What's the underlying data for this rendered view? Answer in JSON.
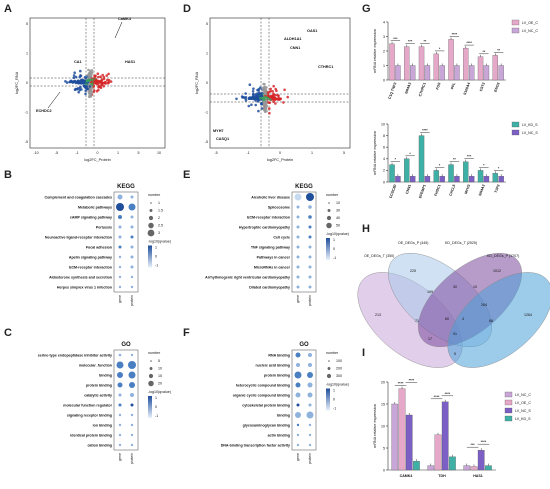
{
  "chart_data": [
    {
      "panel": "A",
      "type": "scatter",
      "xlabel": "log2FC_Protein",
      "ylabel": "log2FC_RNA",
      "xticks": [
        "-10",
        "-5",
        "-1",
        "0",
        "1",
        "5",
        "10"
      ],
      "yticks": [
        "5",
        "1",
        "0",
        "-1",
        "-5"
      ],
      "annotations": [
        "CaMK4",
        "CA1",
        "HAS1",
        "ECHDC2"
      ]
    },
    {
      "panel": "D",
      "type": "scatter",
      "xlabel": "log2FC_Protein",
      "ylabel": "log2FC_RNA",
      "xticks": [
        "-5",
        "-1",
        "0",
        "1",
        "5"
      ],
      "yticks": [
        "5",
        "1",
        "0",
        "-1",
        "-5"
      ],
      "annotations": [
        "OAS1",
        "ALDH1A1",
        "CNN1",
        "CTHRC1",
        "MYH7",
        "CASQ1"
      ]
    },
    {
      "panel": "B",
      "type": "heatmap",
      "title": "KEGG",
      "categories": [
        "Complement and coagulation cascades",
        "Metabolic pathways",
        "cAMP signaling pathway",
        "Pertussis",
        "Neuroactive ligand-receptor interaction",
        "Focal adhesion",
        "Apelin signaling pathway",
        "ECM-receptor interaction",
        "Aldosterone synthesis and secretion",
        "Herpes simplex virus 1 infection"
      ],
      "columns": [
        "gene",
        "protein"
      ],
      "size_legend": {
        "title": "number",
        "values": [
          "1",
          "1.5",
          "2",
          "2.5",
          "3"
        ]
      },
      "color_legend": {
        "title": "-log10(qvalue)",
        "ticks": [
          "1",
          "0",
          "-1"
        ]
      }
    },
    {
      "panel": "E",
      "type": "heatmap",
      "title": "KEGG",
      "categories": [
        "Alcoholic liver disease",
        "Spliceosome",
        "ECM-receptor interaction",
        "Hypertrophic cardiomyopathy",
        "Cell cycle",
        "TNF signaling pathway",
        "Pathways in cancer",
        "MicroRNAs in cancer",
        "Arrhythmogenic right ventricular cardiomyopathy",
        "Dilated cardiomyopathy"
      ],
      "columns": [
        "gene",
        "protein"
      ],
      "size_legend": {
        "title": "number",
        "values": [
          "10",
          "30",
          "40",
          "50"
        ]
      },
      "color_legend": {
        "title": "-log10(qvalue)",
        "ticks": [
          "1",
          "0",
          "-1"
        ]
      }
    },
    {
      "panel": "C",
      "type": "heatmap",
      "title": "GO",
      "categories": [
        "serine-type endopeptidase inhibitor activity",
        "molecular_function",
        "binding",
        "protein binding",
        "catalytic activity",
        "molecular function regulator",
        "signaling receptor binding",
        "ion binding",
        "identical protein binding",
        "cation binding"
      ],
      "columns": [
        "gene",
        "protein"
      ],
      "size_legend": {
        "title": "number",
        "values": [
          "5",
          "10",
          "15",
          "20"
        ]
      },
      "color_legend": {
        "title": "-log10(qvalue)",
        "ticks": [
          "1",
          "0",
          "-1"
        ]
      }
    },
    {
      "panel": "F",
      "type": "heatmap",
      "title": "GO",
      "categories": [
        "RNA binding",
        "nucleic acid binding",
        "protein binding",
        "heterocyclic compound binding",
        "organic cyclic compound binding",
        "cytoskeletal protein binding",
        "binding",
        "glycosaminoglycan binding",
        "actin binding",
        "DNA-binding transcription factor activity"
      ],
      "columns": [
        "gene",
        "protein"
      ],
      "size_legend": {
        "title": "number",
        "values": [
          "100",
          "200",
          "300"
        ]
      },
      "color_legend": {
        "title": "-log10(qvalue)",
        "ticks": [
          "1",
          "0",
          "-1"
        ]
      }
    },
    {
      "panel": "G1",
      "type": "bar",
      "ylabel": "mRNA relative expression",
      "ylim": [
        0,
        4
      ],
      "yticks": [
        "0",
        "1",
        "2",
        "3",
        "4"
      ],
      "categories": [
        "C1Q TNF3",
        "NR4A3",
        "CTHRC1",
        "FOS",
        "PPL",
        "S100A4",
        "CST3",
        "ENO3"
      ],
      "series": [
        {
          "name": "LV_OE_C",
          "values": [
            2.5,
            2.3,
            2.3,
            1.8,
            2.8,
            2.2,
            1.6,
            1.7
          ]
        },
        {
          "name": "LV_NC_C",
          "values": [
            1.0,
            1.0,
            1.0,
            1.0,
            1.0,
            1.0,
            1.0,
            1.0
          ]
        }
      ],
      "significance": [
        "***",
        "***",
        "**",
        "*",
        "****",
        "****",
        "**",
        "**"
      ]
    },
    {
      "panel": "G2",
      "type": "bar",
      "ylabel": "mRNA relative expression",
      "ylim": [
        0,
        10
      ],
      "yticks": [
        "0",
        "2",
        "4",
        "6",
        "8",
        "10"
      ],
      "categories": [
        "CCDC80",
        "CNN1",
        "EFEMP1",
        "FHDC1",
        "CXCL5",
        "MYH3",
        "NR4A3",
        "TJP3"
      ],
      "series": [
        {
          "name": "LV_KD_S",
          "values": [
            3.0,
            4.0,
            8.0,
            2.0,
            3.0,
            3.5,
            2.0,
            1.5
          ]
        },
        {
          "name": "LV_NC_S",
          "values": [
            1.0,
            1.0,
            1.0,
            1.0,
            1.0,
            1.0,
            1.0,
            1.0
          ]
        }
      ],
      "significance": [
        "*",
        "*",
        "****",
        "*",
        "**",
        "***",
        "*",
        "*"
      ]
    },
    {
      "panel": "H",
      "type": "other",
      "sets": [
        {
          "name": "OE_DEGs_T (350)"
        },
        {
          "name": "OE_DEGs_P (445)"
        },
        {
          "name": "KD_DEGs_T (2525)"
        },
        {
          "name": "KD_DEGs_P (1707)"
        }
      ],
      "counts": [
        "213",
        "225",
        "1012",
        "1264",
        "199",
        "30",
        "10",
        "264",
        "71",
        "60",
        "4",
        "68",
        "17",
        "91",
        "5"
      ]
    },
    {
      "panel": "I",
      "type": "bar",
      "ylabel": "mRNA relative expression",
      "ylim": [
        0,
        20
      ],
      "yticks": [
        "0",
        "5",
        "10",
        "15",
        "20"
      ],
      "categories": [
        "CAMK4",
        "TDH",
        "HAS1"
      ],
      "series": [
        {
          "name": "LV_NC_C",
          "values": [
            15.0,
            1.0,
            1.0
          ]
        },
        {
          "name": "LV_OE_C",
          "values": [
            18.5,
            8.0,
            0.8
          ]
        },
        {
          "name": "LV_NC_S",
          "values": [
            12.5,
            15.5,
            4.5
          ]
        },
        {
          "name": "LV_KD_S",
          "values": [
            2.0,
            3.0,
            1.0
          ]
        }
      ],
      "significance": [
        "****",
        "****",
        "****",
        "****",
        "***",
        "****"
      ]
    }
  ],
  "colors": {
    "up": "#d62728",
    "down": "#1f4e9c",
    "green": "#3aa35a",
    "gray": "#999999",
    "oe_c": "#e6a8c8",
    "nc_c": "#c9a6d8",
    "kd_s": "#3fb0a5",
    "nc_s": "#7b5fc5",
    "venn1": "#c9a6d8",
    "venn2": "#a9c8ea",
    "venn3": "#7b4b9c",
    "venn4": "#4da1d8"
  }
}
